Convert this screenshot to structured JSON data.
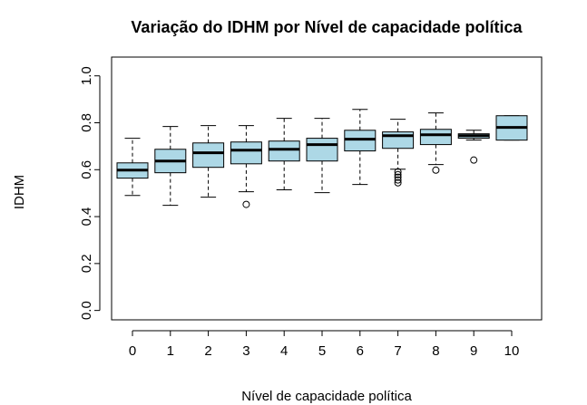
{
  "chart_data": {
    "type": "box",
    "title": "Variação do IDHM por Nível de capacidade política",
    "xlabel": "Nível de capacidade política",
    "ylabel": "IDHM",
    "color": "#add8e6",
    "categories": [
      "0",
      "1",
      "2",
      "3",
      "4",
      "5",
      "6",
      "7",
      "8",
      "9",
      "10"
    ],
    "boxes": [
      {
        "min": 0.49,
        "q1": 0.564,
        "median": 0.598,
        "q3": 0.629,
        "max": 0.734,
        "outliers": []
      },
      {
        "min": 0.448,
        "q1": 0.587,
        "median": 0.637,
        "q3": 0.687,
        "max": 0.784,
        "outliers": []
      },
      {
        "min": 0.483,
        "q1": 0.61,
        "median": 0.672,
        "q3": 0.714,
        "max": 0.788,
        "outliers": []
      },
      {
        "min": 0.506,
        "q1": 0.625,
        "median": 0.683,
        "q3": 0.718,
        "max": 0.788,
        "outliers": [
          0.452
        ]
      },
      {
        "min": 0.514,
        "q1": 0.637,
        "median": 0.687,
        "q3": 0.722,
        "max": 0.819,
        "outliers": []
      },
      {
        "min": 0.502,
        "q1": 0.637,
        "median": 0.707,
        "q3": 0.734,
        "max": 0.819,
        "outliers": []
      },
      {
        "min": 0.537,
        "q1": 0.68,
        "median": 0.73,
        "q3": 0.768,
        "max": 0.857,
        "outliers": []
      },
      {
        "min": 0.602,
        "q1": 0.691,
        "median": 0.745,
        "q3": 0.761,
        "max": 0.815,
        "outliers": [
          0.591,
          0.579,
          0.568,
          0.556,
          0.544
        ]
      },
      {
        "min": 0.622,
        "q1": 0.707,
        "median": 0.749,
        "q3": 0.772,
        "max": 0.842,
        "outliers": [
          0.598
        ]
      },
      {
        "min": 0.726,
        "q1": 0.734,
        "median": 0.745,
        "q3": 0.753,
        "max": 0.768,
        "outliers": [
          0.641
        ]
      },
      {
        "min": 0.726,
        "q1": 0.726,
        "median": 0.78,
        "q3": 0.83,
        "max": 0.83,
        "outliers": []
      }
    ],
    "ylim": [
      -0.04,
      1.08
    ],
    "yticks": [
      {
        "value": 0,
        "label": "0.0"
      },
      0.2,
      0.4,
      0.6,
      0.8,
      {
        "value": 1,
        "label": "1.0"
      }
    ]
  }
}
